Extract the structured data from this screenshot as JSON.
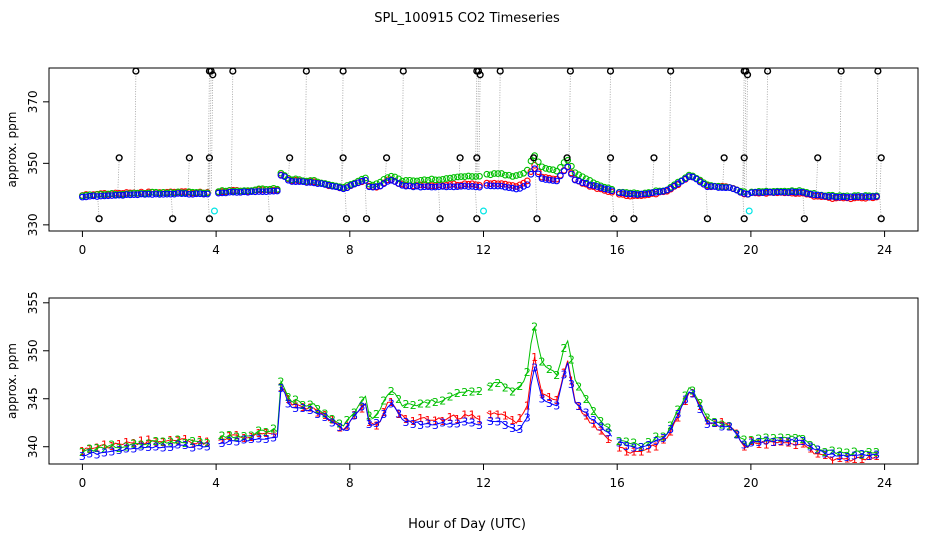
{
  "chart_data": {
    "title": "SPL_100915  CO2 Timeseries",
    "xlabel": "Hour of Day (UTC)",
    "x_ticks": [
      0,
      4,
      8,
      12,
      16,
      20,
      24
    ],
    "xlim": [
      -1,
      25
    ],
    "colors": {
      "red": "#ff0000",
      "green": "#00c000",
      "blue": "#0000ff",
      "black": "#000000",
      "cyan": "#00e5e5",
      "grey": "#9a9a9a"
    },
    "panels": [
      {
        "type": "scatter",
        "ylabel": "approx. ppm",
        "ylim": [
          328,
          381
        ],
        "y_ticks": [
          330,
          350,
          370
        ],
        "note": "black open circles are individual outlier readings (spikes), grey dotted lines connect them; cyan circles low outliers",
        "series": [
          {
            "name": "red",
            "color": "red"
          },
          {
            "name": "green",
            "color": "green"
          },
          {
            "name": "blue",
            "color": "blue"
          }
        ],
        "outliers": {
          "high_380": [
            1.6,
            3.8,
            3.85,
            4.5,
            6.7,
            7.8,
            9.6,
            11.8,
            11.85,
            12.5,
            14.6,
            15.8,
            17.6,
            19.8,
            19.85,
            20.5,
            22.7,
            23.8
          ],
          "high_379": [
            3.9,
            11.9,
            19.9
          ],
          "mid_352": [
            1.1,
            3.2,
            3.8,
            6.2,
            7.8,
            9.1,
            11.3,
            11.8,
            13.5,
            14.5,
            15.8,
            17.1,
            19.2,
            19.8,
            22.0,
            23.9
          ],
          "low_332": [
            0.5,
            2.7,
            3.8,
            5.6,
            7.9,
            8.5,
            10.7,
            11.8,
            13.6,
            15.9,
            16.5,
            18.7,
            19.8,
            21.6,
            23.9
          ],
          "cyan_low": [
            3.95,
            12.0,
            19.95
          ]
        }
      },
      {
        "type": "line",
        "ylabel": "approx. ppm",
        "ylim": [
          338.2,
          355.5
        ],
        "y_ticks": [
          340,
          345,
          350,
          355
        ],
        "marker_labels": [
          "1",
          "2",
          "3"
        ],
        "series": [
          {
            "name": "1",
            "color": "red"
          },
          {
            "name": "2",
            "color": "green"
          },
          {
            "name": "3",
            "color": "blue"
          }
        ]
      }
    ],
    "base_profile": [
      [
        0.0,
        339.1
      ],
      [
        1.0,
        339.6
      ],
      [
        2.0,
        340.0
      ],
      [
        3.0,
        340.1
      ],
      [
        3.8,
        340.0
      ],
      [
        4.0,
        340.4
      ],
      [
        5.0,
        340.7
      ],
      [
        5.85,
        341.0
      ],
      [
        5.95,
        346.5
      ],
      [
        6.2,
        344.2
      ],
      [
        7.0,
        343.6
      ],
      [
        7.8,
        341.8
      ],
      [
        7.9,
        342.0
      ],
      [
        8.3,
        344.0
      ],
      [
        8.5,
        344.5
      ],
      [
        8.6,
        342.0
      ],
      [
        8.9,
        342.5
      ],
      [
        9.2,
        344.8
      ],
      [
        9.6,
        342.6
      ],
      [
        10.5,
        342.3
      ],
      [
        11.5,
        342.6
      ],
      [
        11.9,
        342.3
      ],
      [
        12.0,
        342.8
      ],
      [
        12.5,
        342.7
      ],
      [
        13.0,
        341.5
      ],
      [
        13.3,
        342.8
      ],
      [
        13.5,
        348.8
      ],
      [
        13.75,
        345.0
      ],
      [
        14.2,
        344.3
      ],
      [
        14.5,
        349.0
      ],
      [
        14.75,
        344.5
      ],
      [
        15.2,
        343.0
      ],
      [
        15.9,
        341.0
      ],
      [
        16.1,
        340.4
      ],
      [
        16.7,
        339.8
      ],
      [
        17.5,
        341.2
      ],
      [
        18.2,
        346.0
      ],
      [
        18.7,
        342.5
      ],
      [
        19.4,
        342.0
      ],
      [
        19.9,
        339.8
      ],
      [
        20.0,
        340.5
      ],
      [
        21.5,
        340.7
      ],
      [
        22.0,
        339.6
      ],
      [
        22.5,
        339.1
      ],
      [
        23.0,
        339.0
      ],
      [
        23.8,
        339.2
      ]
    ],
    "series_offsets": {
      "red": [
        [
          0,
          0.6
        ],
        [
          5.9,
          0.4
        ],
        [
          8.0,
          0.0
        ],
        [
          13.4,
          1.0
        ],
        [
          15.8,
          -0.8
        ],
        [
          19.0,
          0.2
        ],
        [
          22.0,
          -0.5
        ],
        [
          24,
          -0.2
        ]
      ],
      "green": [
        [
          0,
          0.4
        ],
        [
          5.9,
          0.7
        ],
        [
          8.0,
          0.5
        ],
        [
          13.3,
          4.5
        ],
        [
          15.8,
          0.3
        ],
        [
          19.0,
          0.3
        ],
        [
          22.0,
          0.3
        ],
        [
          24,
          0.3
        ]
      ],
      "blue": [
        [
          0,
          0.0
        ],
        [
          24,
          0.0
        ]
      ]
    }
  }
}
